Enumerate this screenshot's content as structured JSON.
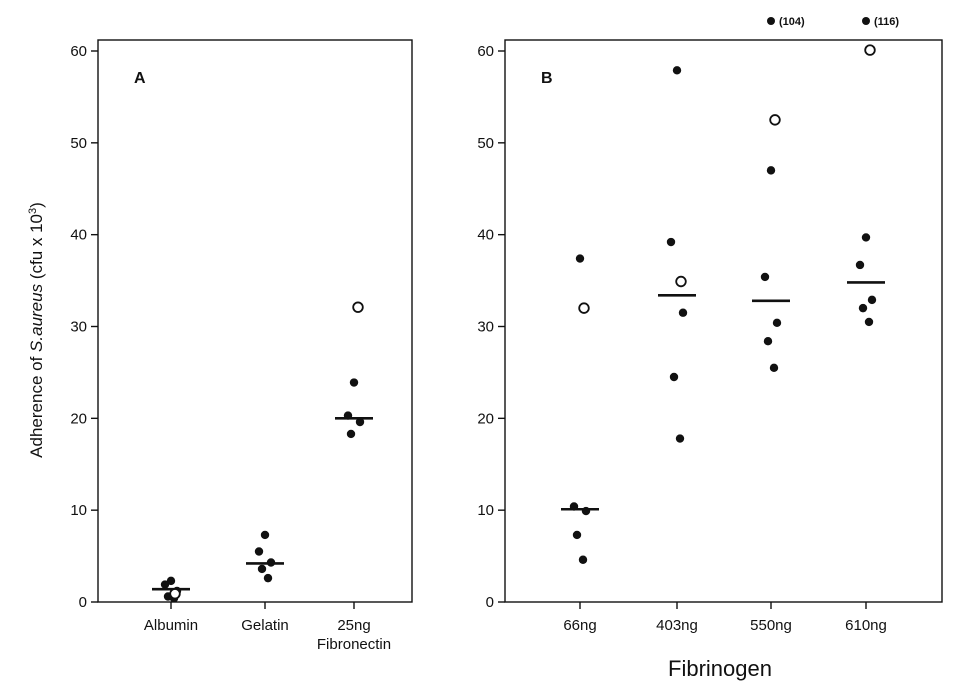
{
  "chart_data": [
    {
      "type": "scatter",
      "panel_label": "A",
      "ylabel": "Adherence of S.aureus (cfu x 10³)",
      "ylim": [
        0,
        62
      ],
      "yticks": [
        0,
        10,
        20,
        30,
        40,
        50,
        60
      ],
      "categories": [
        {
          "label": "Albumin",
          "label_line2": ""
        },
        {
          "label": "Gelatin",
          "label_line2": ""
        },
        {
          "label": "25ng",
          "label_line2": "Fibronectin"
        }
      ],
      "series": [
        {
          "marker": "filled",
          "points": [
            {
              "cat": 0,
              "y": 2.3
            },
            {
              "cat": 0,
              "y": 1.9
            },
            {
              "cat": 0,
              "y": 1.2
            },
            {
              "cat": 0,
              "y": 0.6
            },
            {
              "cat": 0,
              "y": 0.4
            },
            {
              "cat": 1,
              "y": 7.3
            },
            {
              "cat": 1,
              "y": 5.5
            },
            {
              "cat": 1,
              "y": 4.3
            },
            {
              "cat": 1,
              "y": 3.6
            },
            {
              "cat": 1,
              "y": 2.6
            },
            {
              "cat": 2,
              "y": 23.9
            },
            {
              "cat": 2,
              "y": 20.3
            },
            {
              "cat": 2,
              "y": 19.6
            },
            {
              "cat": 2,
              "y": 18.3
            }
          ]
        },
        {
          "marker": "open",
          "points": [
            {
              "cat": 0,
              "y": 0.9
            },
            {
              "cat": 2,
              "y": 32.1
            }
          ]
        }
      ],
      "medians": [
        1.4,
        4.2,
        20.0
      ]
    },
    {
      "type": "scatter",
      "panel_label": "B",
      "xlabel": "Fibrinogen",
      "ylim": [
        0,
        62
      ],
      "yticks": [
        0,
        10,
        20,
        30,
        40,
        50,
        60
      ],
      "categories": [
        {
          "label": "66ng"
        },
        {
          "label": "403ng"
        },
        {
          "label": "550ng"
        },
        {
          "label": "610ng"
        }
      ],
      "series": [
        {
          "marker": "filled",
          "points": [
            {
              "cat": 0,
              "y": 37.4
            },
            {
              "cat": 0,
              "y": 10.4
            },
            {
              "cat": 0,
              "y": 9.9
            },
            {
              "cat": 0,
              "y": 7.3
            },
            {
              "cat": 0,
              "y": 4.6
            },
            {
              "cat": 1,
              "y": 57.9
            },
            {
              "cat": 1,
              "y": 39.2
            },
            {
              "cat": 1,
              "y": 31.5
            },
            {
              "cat": 1,
              "y": 24.5
            },
            {
              "cat": 1,
              "y": 17.8
            },
            {
              "cat": 2,
              "y": 47.0
            },
            {
              "cat": 2,
              "y": 35.4
            },
            {
              "cat": 2,
              "y": 30.4
            },
            {
              "cat": 2,
              "y": 28.4
            },
            {
              "cat": 2,
              "y": 25.5
            },
            {
              "cat": 3,
              "y": 39.7
            },
            {
              "cat": 3,
              "y": 36.7
            },
            {
              "cat": 3,
              "y": 32.9
            },
            {
              "cat": 3,
              "y": 32.0
            },
            {
              "cat": 3,
              "y": 30.5
            }
          ]
        },
        {
          "marker": "open",
          "points": [
            {
              "cat": 0,
              "y": 32.0
            },
            {
              "cat": 1,
              "y": 34.9
            },
            {
              "cat": 2,
              "y": 52.5
            },
            {
              "cat": 3,
              "y": 60.1
            }
          ]
        }
      ],
      "medians": [
        10.1,
        33.4,
        32.8,
        34.8
      ],
      "off_scale": [
        {
          "cat": 2,
          "value": 104,
          "label": "(104)"
        },
        {
          "cat": 3,
          "value": 116,
          "label": "(116)"
        }
      ]
    }
  ]
}
